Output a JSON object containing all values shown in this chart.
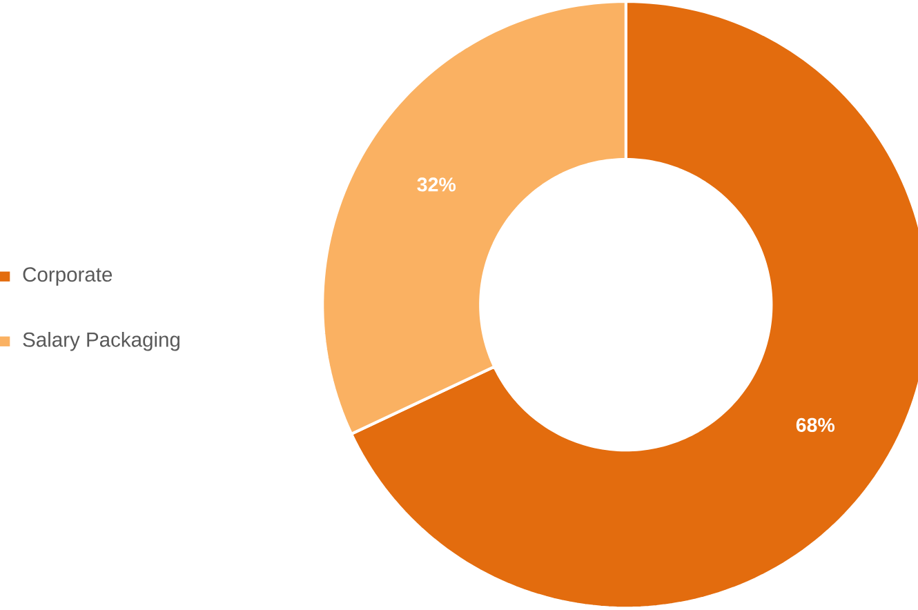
{
  "chart_data": {
    "type": "donut",
    "categories": [
      "Corporate",
      "Salary Packaging"
    ],
    "values": [
      68,
      32
    ],
    "colors": [
      "#e36c0e",
      "#fab162"
    ],
    "value_labels": [
      "68%",
      "32%"
    ],
    "legend": "left"
  }
}
